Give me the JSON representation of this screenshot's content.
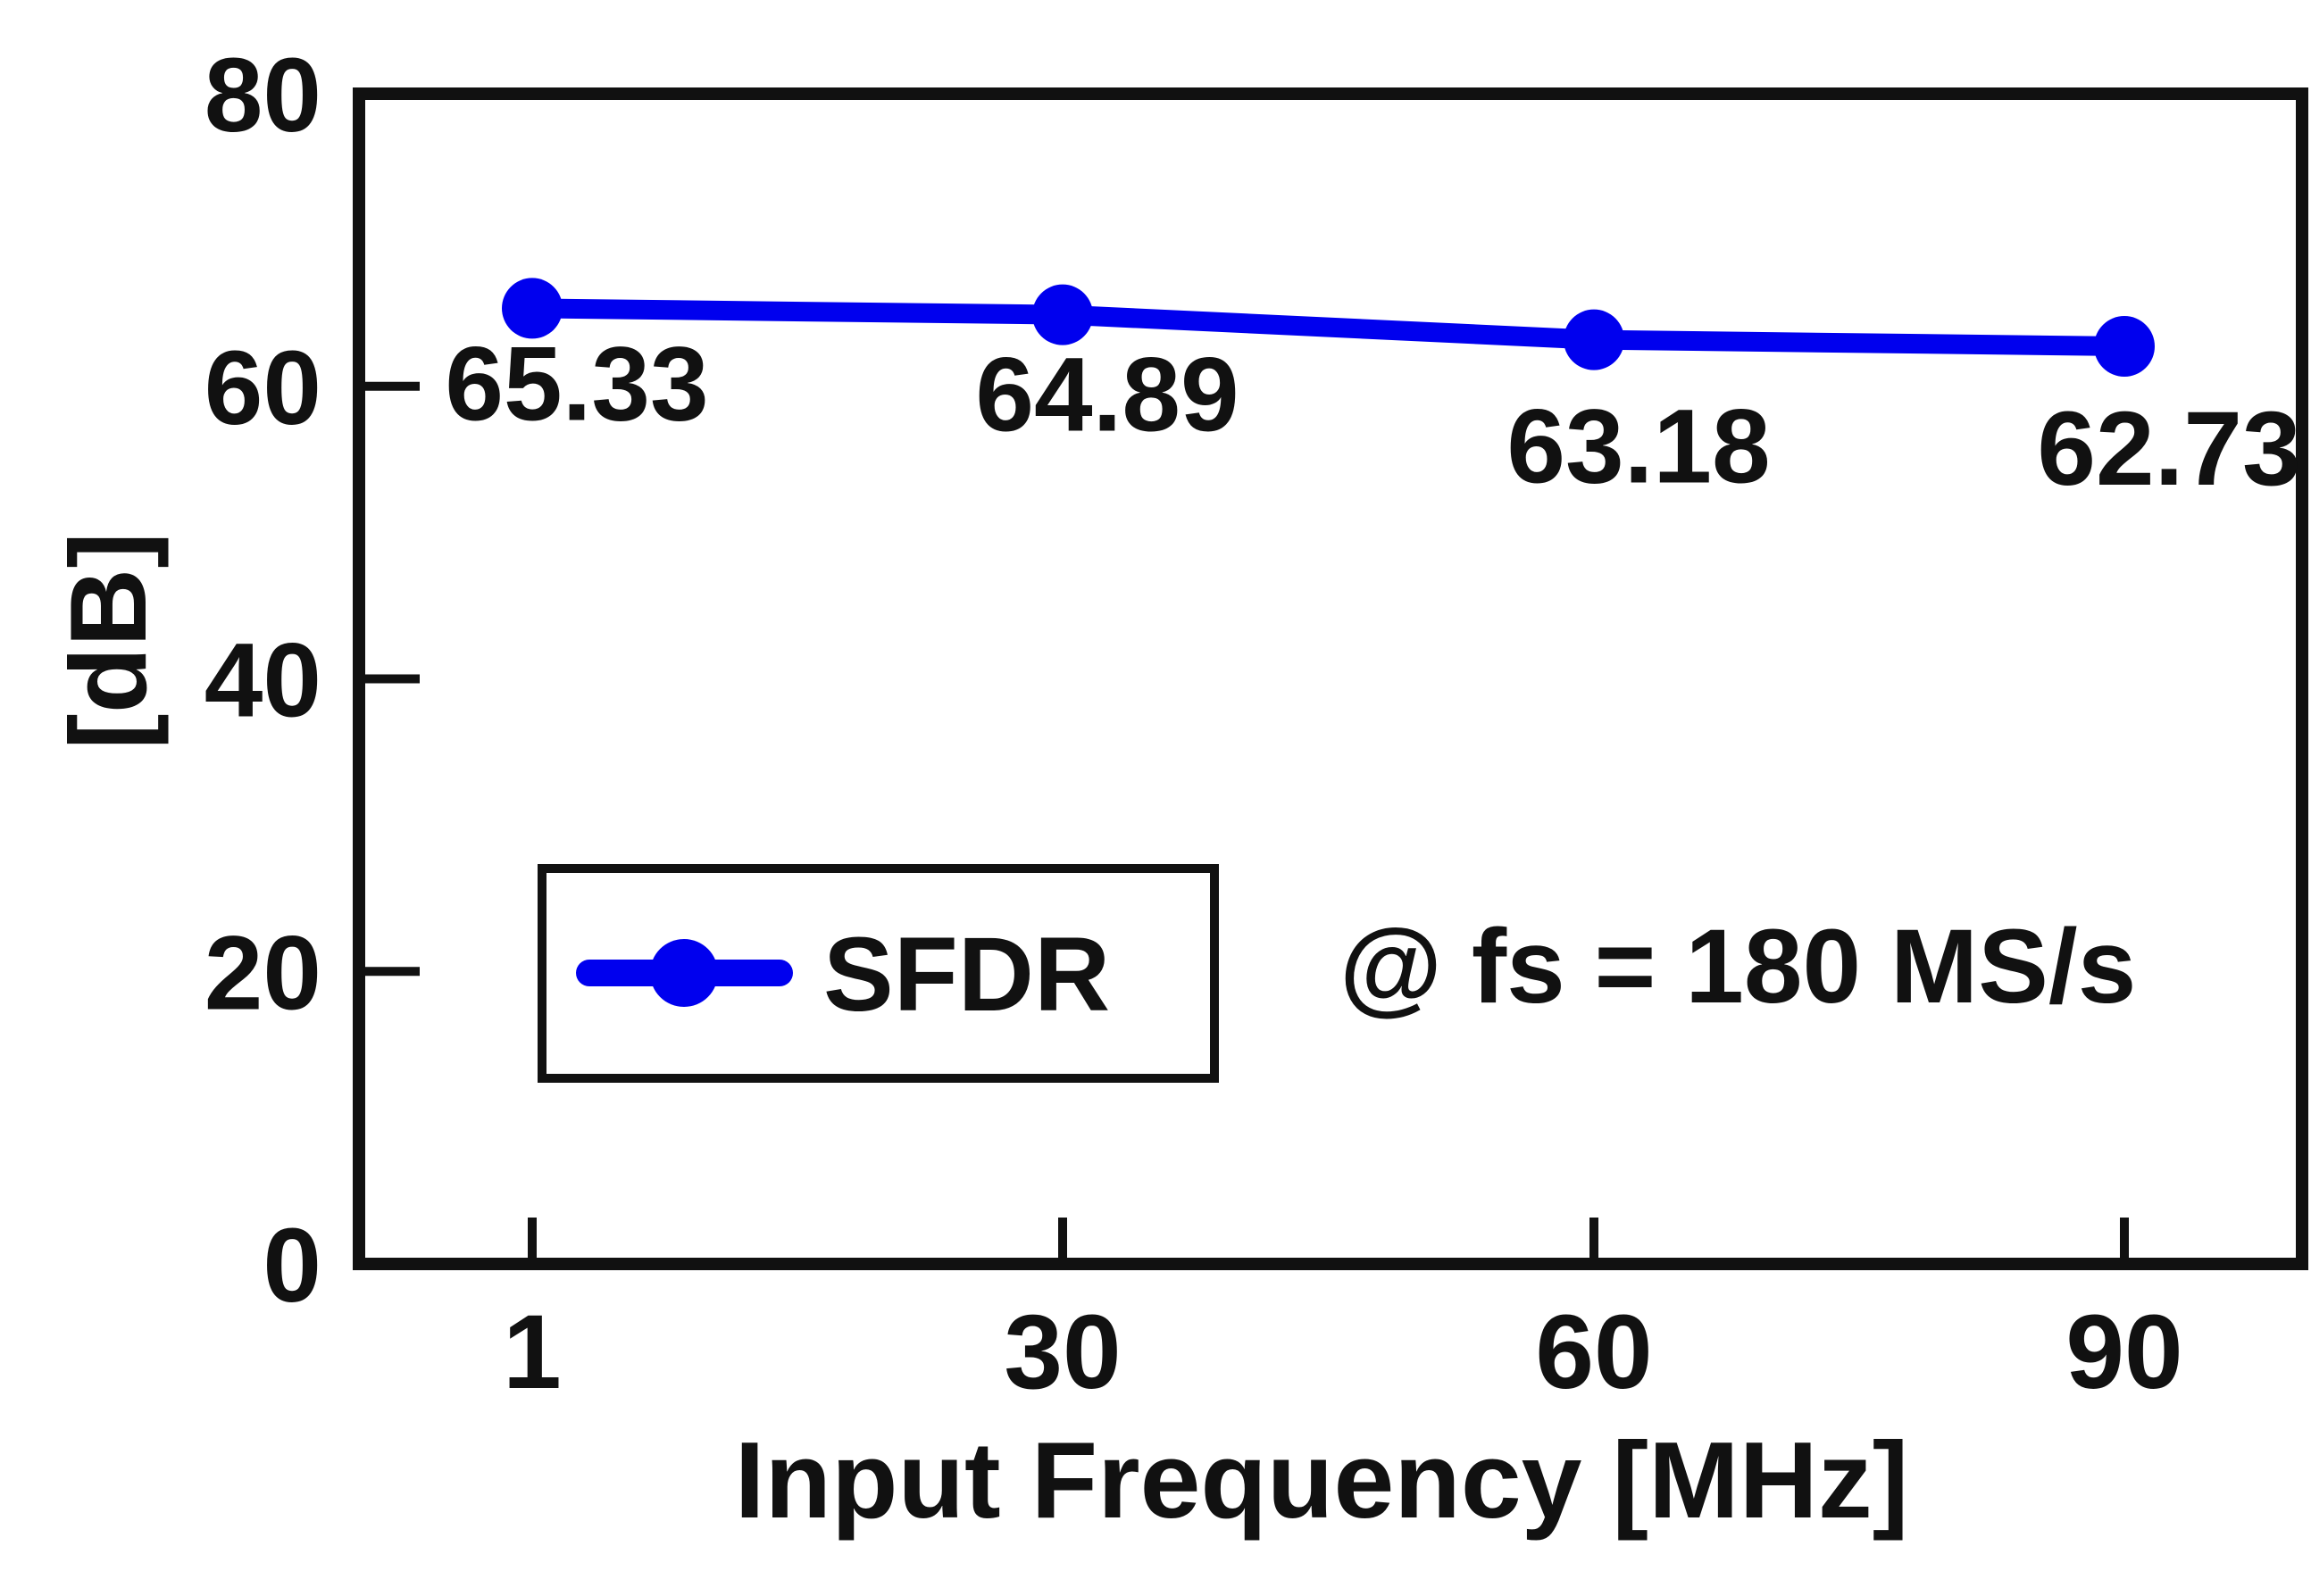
{
  "chart_data": {
    "type": "line",
    "categories": [
      "1",
      "30",
      "60",
      "90"
    ],
    "series": [
      {
        "name": "SFDR",
        "values": [
          65.33,
          64.89,
          63.18,
          62.73
        ],
        "labels": [
          "65.33",
          "64.89",
          "63.18",
          "62.73"
        ]
      }
    ],
    "xlabel": "Input Frequency [MHz]",
    "ylabel": "[dB]",
    "ylim": [
      0,
      80
    ],
    "yticks": [
      "0",
      "20",
      "40",
      "60",
      "80"
    ],
    "xticks": [
      "1",
      "30",
      "60",
      "90"
    ],
    "annotation": "@ fs = 180 MS/s",
    "legend_position": "lower-left",
    "grid": false,
    "colors": {
      "series": "#0000ee",
      "axis": "#111111"
    }
  }
}
